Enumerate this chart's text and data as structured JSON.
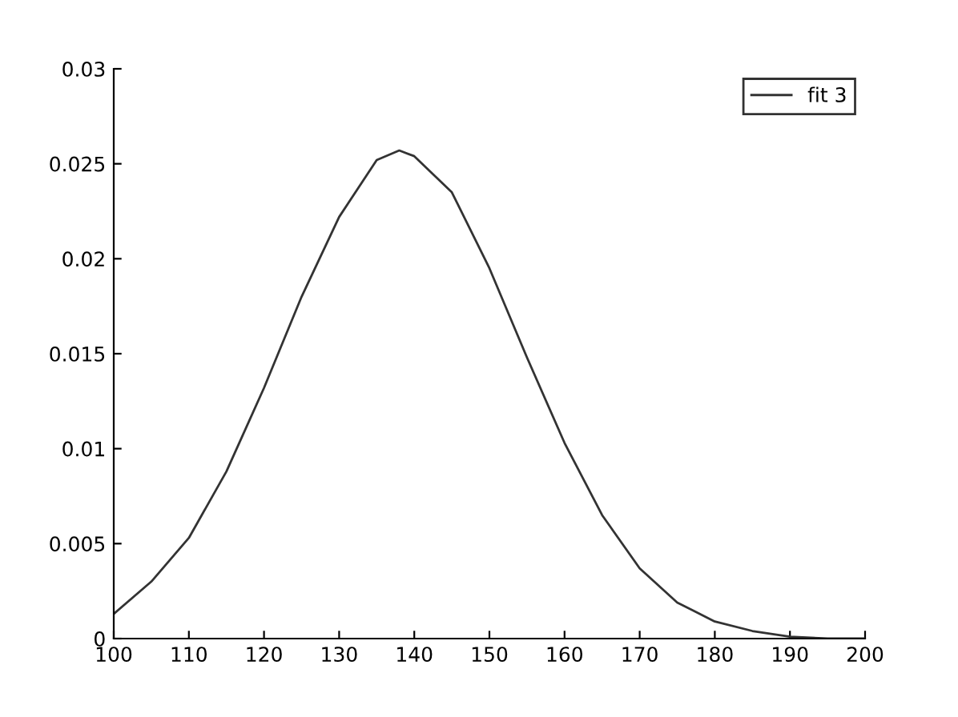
{
  "chart_data": {
    "type": "line",
    "x": [
      100,
      105,
      110,
      115,
      120,
      125,
      130,
      135,
      138,
      140,
      145,
      150,
      155,
      160,
      165,
      170,
      175,
      180,
      185,
      190,
      195,
      200
    ],
    "series": [
      {
        "name": "fit 3",
        "color": "#333333",
        "values": [
          0.0013,
          0.003,
          0.0053,
          0.0088,
          0.0132,
          0.018,
          0.0222,
          0.0252,
          0.0257,
          0.0254,
          0.0235,
          0.0195,
          0.0148,
          0.0103,
          0.0065,
          0.0037,
          0.0019,
          0.0009,
          0.0004,
          0.0001,
          0,
          0
        ]
      }
    ],
    "xlim": [
      100,
      200
    ],
    "xticks": [
      100,
      110,
      120,
      130,
      140,
      150,
      160,
      170,
      180,
      190,
      200
    ],
    "ylim": [
      0,
      0.03
    ],
    "yticks": [
      0,
      0.005,
      0.01,
      0.015,
      0.02,
      0.025,
      0.03
    ],
    "legend": "top right",
    "grid": false
  }
}
